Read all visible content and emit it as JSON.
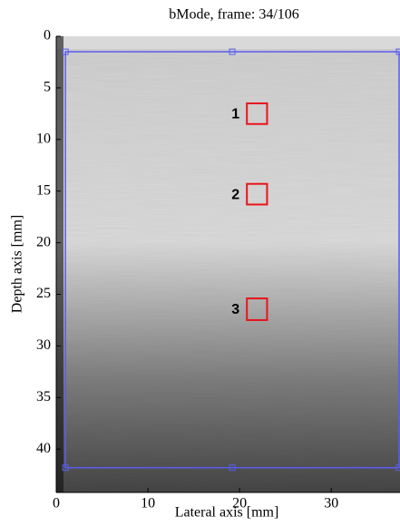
{
  "chart_data": {
    "type": "image",
    "title": "bMode, frame: 34/106",
    "x_label": "Lateral axis [mm]",
    "y_label": "Depth axis [mm]",
    "xlim": [
      0,
      37.5
    ],
    "ylim": [
      0,
      44.2
    ],
    "y_reversed": true,
    "xticks": [
      0,
      10,
      20,
      30
    ],
    "yticks": [
      0,
      5,
      10,
      15,
      20,
      25,
      30,
      35,
      40
    ],
    "regions": [
      {
        "label": "1",
        "x": [
          20.8,
          23
        ],
        "y": [
          6.5,
          8.5
        ]
      },
      {
        "label": "2",
        "x": [
          20.8,
          23
        ],
        "y": [
          14.3,
          16.3
        ]
      },
      {
        "label": "3",
        "x": [
          20.8,
          23
        ],
        "y": [
          25.4,
          27.5
        ]
      }
    ],
    "region_color": "#e8141b",
    "label_color": "#22d02a",
    "selection": {
      "x": [
        1,
        37.4
      ],
      "y": [
        1.5,
        41.8
      ],
      "color": "#5a5cf0"
    }
  }
}
